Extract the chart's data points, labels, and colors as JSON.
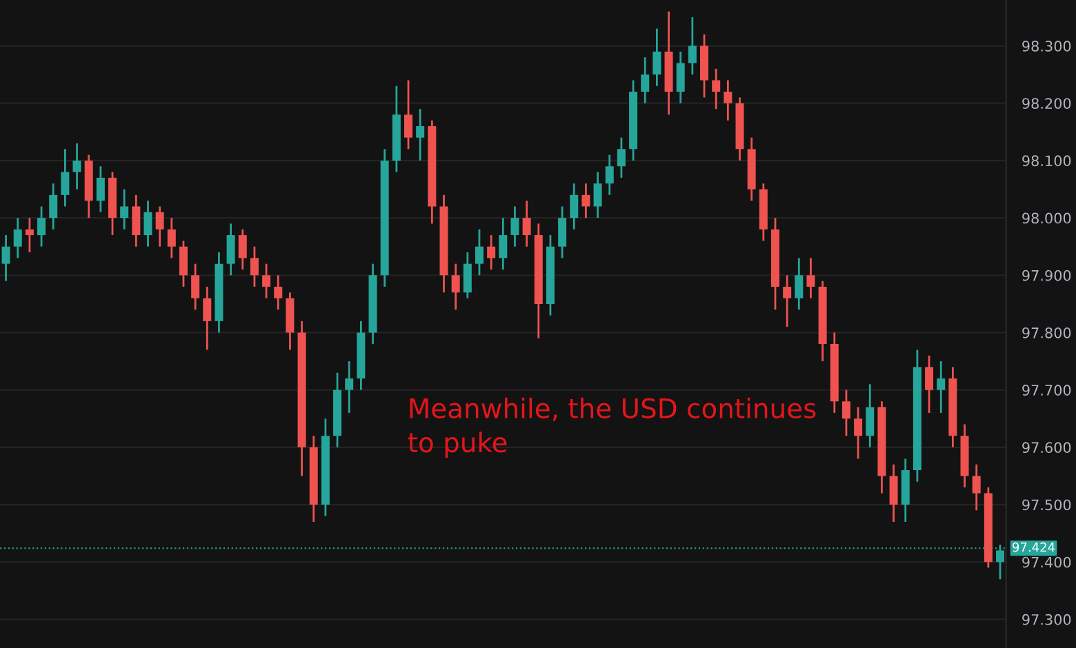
{
  "chart_data": {
    "type": "candlestick",
    "annotations": [
      "Meanwhile, the USD continues to puke"
    ],
    "categories": [
      null,
      null,
      null,
      null,
      null,
      null,
      null,
      null,
      null,
      null,
      null,
      null,
      null,
      null,
      null,
      null,
      null,
      null,
      null,
      null,
      null,
      null,
      null,
      null,
      null,
      null,
      null,
      null,
      null,
      null,
      null,
      null,
      null,
      null,
      null,
      null,
      null,
      null,
      null,
      null,
      null,
      null,
      null,
      null,
      null,
      null,
      null,
      null,
      null,
      null,
      null,
      null,
      null,
      null,
      null,
      null,
      null,
      null,
      null,
      null,
      null,
      null,
      null,
      null,
      null,
      null,
      null,
      null,
      null,
      null,
      null,
      null,
      null,
      null,
      null,
      null,
      null,
      null,
      null,
      null,
      null,
      null,
      null,
      null,
      null
    ],
    "ohlc": [
      [
        97.92,
        97.97,
        97.89,
        97.95
      ],
      [
        97.95,
        98.0,
        97.93,
        97.98
      ],
      [
        97.98,
        98.0,
        97.94,
        97.97
      ],
      [
        97.97,
        98.02,
        97.95,
        98.0
      ],
      [
        98.0,
        98.06,
        97.98,
        98.04
      ],
      [
        98.04,
        98.12,
        98.02,
        98.08
      ],
      [
        98.08,
        98.13,
        98.05,
        98.1
      ],
      [
        98.1,
        98.11,
        98.0,
        98.03
      ],
      [
        98.03,
        98.09,
        98.01,
        98.07
      ],
      [
        98.07,
        98.08,
        97.97,
        98.0
      ],
      [
        98.0,
        98.05,
        97.98,
        98.02
      ],
      [
        98.02,
        98.04,
        97.95,
        97.97
      ],
      [
        97.97,
        98.03,
        97.95,
        98.01
      ],
      [
        98.01,
        98.02,
        97.95,
        97.98
      ],
      [
        97.98,
        98.0,
        97.93,
        97.95
      ],
      [
        97.95,
        97.96,
        97.88,
        97.9
      ],
      [
        97.9,
        97.92,
        97.84,
        97.86
      ],
      [
        97.86,
        97.88,
        97.77,
        97.82
      ],
      [
        97.82,
        97.94,
        97.8,
        97.92
      ],
      [
        97.92,
        97.99,
        97.9,
        97.97
      ],
      [
        97.97,
        97.98,
        97.91,
        97.93
      ],
      [
        97.93,
        97.95,
        97.88,
        97.9
      ],
      [
        97.9,
        97.92,
        97.86,
        97.88
      ],
      [
        97.88,
        97.9,
        97.84,
        97.86
      ],
      [
        97.86,
        97.87,
        97.77,
        97.8
      ],
      [
        97.8,
        97.82,
        97.55,
        97.6
      ],
      [
        97.6,
        97.62,
        97.47,
        97.5
      ],
      [
        97.5,
        97.65,
        97.48,
        97.62
      ],
      [
        97.62,
        97.73,
        97.6,
        97.7
      ],
      [
        97.7,
        97.75,
        97.66,
        97.72
      ],
      [
        97.72,
        97.82,
        97.7,
        97.8
      ],
      [
        97.8,
        97.92,
        97.78,
        97.9
      ],
      [
        97.9,
        98.12,
        97.88,
        98.1
      ],
      [
        98.1,
        98.23,
        98.08,
        98.18
      ],
      [
        98.18,
        98.24,
        98.12,
        98.14
      ],
      [
        98.14,
        98.19,
        98.1,
        98.16
      ],
      [
        98.16,
        98.17,
        97.99,
        98.02
      ],
      [
        98.02,
        98.04,
        97.87,
        97.9
      ],
      [
        97.9,
        97.92,
        97.84,
        97.87
      ],
      [
        97.87,
        97.94,
        97.86,
        97.92
      ],
      [
        97.92,
        97.98,
        97.9,
        97.95
      ],
      [
        97.95,
        97.97,
        97.91,
        97.93
      ],
      [
        97.93,
        98.0,
        97.91,
        97.97
      ],
      [
        97.97,
        98.02,
        97.95,
        98.0
      ],
      [
        98.0,
        98.03,
        97.95,
        97.97
      ],
      [
        97.97,
        97.99,
        97.79,
        97.85
      ],
      [
        97.85,
        97.97,
        97.83,
        97.95
      ],
      [
        97.95,
        98.02,
        97.93,
        98.0
      ],
      [
        98.0,
        98.06,
        97.98,
        98.04
      ],
      [
        98.04,
        98.06,
        98.0,
        98.02
      ],
      [
        98.02,
        98.08,
        98.0,
        98.06
      ],
      [
        98.06,
        98.11,
        98.04,
        98.09
      ],
      [
        98.09,
        98.14,
        98.07,
        98.12
      ],
      [
        98.12,
        98.24,
        98.1,
        98.22
      ],
      [
        98.22,
        98.28,
        98.2,
        98.25
      ],
      [
        98.25,
        98.33,
        98.23,
        98.29
      ],
      [
        98.29,
        98.36,
        98.18,
        98.22
      ],
      [
        98.22,
        98.29,
        98.2,
        98.27
      ],
      [
        98.27,
        98.35,
        98.25,
        98.3
      ],
      [
        98.3,
        98.32,
        98.21,
        98.24
      ],
      [
        98.24,
        98.26,
        98.19,
        98.22
      ],
      [
        98.22,
        98.24,
        98.17,
        98.2
      ],
      [
        98.2,
        98.21,
        98.1,
        98.12
      ],
      [
        98.12,
        98.14,
        98.03,
        98.05
      ],
      [
        98.05,
        98.06,
        97.96,
        97.98
      ],
      [
        97.98,
        98.0,
        97.84,
        97.88
      ],
      [
        97.88,
        97.9,
        97.81,
        97.86
      ],
      [
        97.86,
        97.93,
        97.84,
        97.9
      ],
      [
        97.9,
        97.93,
        97.86,
        97.88
      ],
      [
        97.88,
        97.89,
        97.75,
        97.78
      ],
      [
        97.78,
        97.8,
        97.66,
        97.68
      ],
      [
        97.68,
        97.7,
        97.62,
        97.65
      ],
      [
        97.65,
        97.67,
        97.58,
        97.62
      ],
      [
        97.62,
        97.71,
        97.6,
        97.67
      ],
      [
        97.67,
        97.68,
        97.52,
        97.55
      ],
      [
        97.55,
        97.57,
        97.47,
        97.5
      ],
      [
        97.5,
        97.58,
        97.47,
        97.56
      ],
      [
        97.56,
        97.77,
        97.54,
        97.74
      ],
      [
        97.74,
        97.76,
        97.66,
        97.7
      ],
      [
        97.7,
        97.75,
        97.66,
        97.72
      ],
      [
        97.72,
        97.74,
        97.6,
        97.62
      ],
      [
        97.62,
        97.64,
        97.53,
        97.55
      ],
      [
        97.55,
        97.57,
        97.49,
        97.52
      ],
      [
        97.52,
        97.53,
        97.39,
        97.4
      ],
      [
        97.4,
        97.43,
        97.37,
        97.42
      ]
    ],
    "colors": [
      "#26a69a",
      "#26a69a",
      "#ef5350",
      "#26a69a",
      "#26a69a",
      "#26a69a",
      "#26a69a",
      "#ef5350",
      "#26a69a",
      "#ef5350",
      "#26a69a",
      "#ef5350",
      "#26a69a",
      "#ef5350",
      "#ef5350",
      "#ef5350",
      "#ef5350",
      "#ef5350",
      "#26a69a",
      "#26a69a",
      "#ef5350",
      "#ef5350",
      "#ef5350",
      "#ef5350",
      "#ef5350",
      "#ef5350",
      "#ef5350",
      "#26a69a",
      "#26a69a",
      "#26a69a",
      "#26a69a",
      "#26a69a",
      "#26a69a",
      "#26a69a",
      "#ef5350",
      "#26a69a",
      "#ef5350",
      "#ef5350",
      "#ef5350",
      "#26a69a",
      "#26a69a",
      "#ef5350",
      "#26a69a",
      "#26a69a",
      "#ef5350",
      "#ef5350",
      "#26a69a",
      "#26a69a",
      "#26a69a",
      "#ef5350",
      "#26a69a",
      "#26a69a",
      "#26a69a",
      "#26a69a",
      "#26a69a",
      "#26a69a",
      "#ef5350",
      "#26a69a",
      "#26a69a",
      "#ef5350",
      "#ef5350",
      "#ef5350",
      "#ef5350",
      "#ef5350",
      "#ef5350",
      "#ef5350",
      "#ef5350",
      "#26a69a",
      "#ef5350",
      "#ef5350",
      "#ef5350",
      "#ef5350",
      "#ef5350",
      "#26a69a",
      "#ef5350",
      "#ef5350",
      "#26a69a",
      "#26a69a",
      "#ef5350",
      "#26a69a",
      "#ef5350",
      "#ef5350",
      "#ef5350",
      "#ef5350",
      "#26a69a"
    ],
    "ylim": [
      97.25,
      98.38
    ],
    "yticks": [
      {
        "value": 97.3,
        "label": "97.300"
      },
      {
        "value": 97.4,
        "label": "97.400"
      },
      {
        "value": 97.5,
        "label": "97.500"
      },
      {
        "value": 97.6,
        "label": "97.600"
      },
      {
        "value": 97.7,
        "label": "97.700"
      },
      {
        "value": 97.8,
        "label": "97.800"
      },
      {
        "value": 97.9,
        "label": "97.900"
      },
      {
        "value": 98.0,
        "label": "98.000"
      },
      {
        "value": 98.1,
        "label": "98.100"
      },
      {
        "value": 98.2,
        "label": "98.200"
      },
      {
        "value": 98.3,
        "label": "98.300"
      }
    ],
    "ref_lines": [
      {
        "axis": "y",
        "value": 97.424,
        "label": "97.424",
        "color": "#26a69a",
        "line_style": "dotted"
      }
    ],
    "grid": "y"
  }
}
